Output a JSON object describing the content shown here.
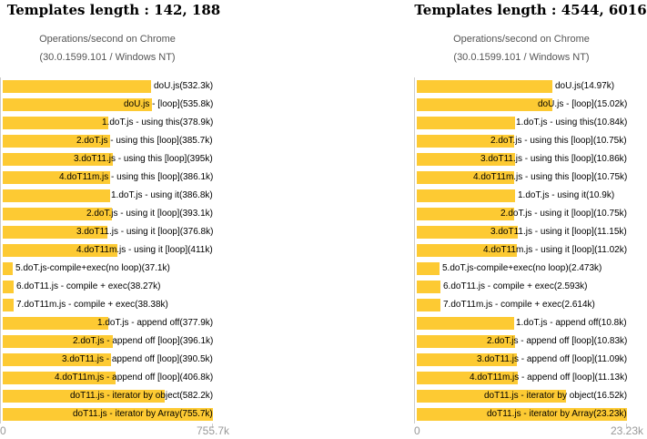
{
  "colors": {
    "bar": "#fdca33",
    "axis": "#cccccc",
    "axis_text": "#999999",
    "subtitle_text": "#555555"
  },
  "chart_data": [
    {
      "type": "bar",
      "orientation": "horizontal",
      "title": "Templates length : 142, 188",
      "subtitle": [
        "Operations/second on Chrome",
        "(30.0.1599.101 / Windows NT)"
      ],
      "ylabel": "",
      "xlabel": "Operations/second",
      "legend": "none",
      "grid": false,
      "xlim": [
        0,
        755700
      ],
      "x_tick_labels": [
        "0",
        "755.7k"
      ],
      "categories": [
        "doU.js",
        "doU.js - [loop]",
        "1.doT.js - using this",
        "2.doT.js - using this [loop]",
        "3.doT11.js - using this [loop]",
        "4.doT11m.js - using this [loop]",
        "1.doT.js - using it",
        "2.doT.js - using it [loop]",
        "3.doT11.js - using it [loop]",
        "4.doT11m.js - using it [loop]",
        "5.doT.js-compile+exec(no loop)",
        "6.doT11.js - compile + exec",
        "7.doT11m.js - compile + exec",
        "1.doT.js - append off",
        "2.doT.js - append off [loop]",
        "3.doT11.js - append off [loop]",
        "4.doT11m.js - append off [loop]",
        "doT11.js - iterator by object",
        "doT11.js - iterator by Array"
      ],
      "values": [
        532300,
        535800,
        378900,
        385700,
        395000,
        386100,
        386800,
        393100,
        376800,
        411000,
        37100,
        38270,
        38380,
        377900,
        396100,
        390500,
        406800,
        582200,
        755700
      ],
      "bar_labels": [
        "doU.js(532.3k)",
        "doU.js - [loop](535.8k)",
        "1.doT.js - using this(378.9k)",
        "2.doT.js - using this [loop](385.7k)",
        "3.doT11.js - using this [loop](395k)",
        "4.doT11m.js - using this [loop](386.1k)",
        "1.doT.js - using it(386.8k)",
        "2.doT.js - using it [loop](393.1k)",
        "3.doT11.js - using it [loop](376.8k)",
        "4.doT11m.js - using it [loop](411k)",
        "5.doT.js-compile+exec(no loop)(37.1k)",
        "6.doT11.js - compile + exec(38.27k)",
        "7.doT11m.js - compile + exec(38.38k)",
        "1.doT.js - append off(377.9k)",
        "2.doT.js - append off [loop](396.1k)",
        "3.doT11.js - append off [loop](390.5k)",
        "4.doT11m.js - append off [loop](406.8k)",
        "doT11.js - iterator by object(582.2k)",
        "doT11.js - iterator by Array(755.7k)"
      ]
    },
    {
      "type": "bar",
      "orientation": "horizontal",
      "title": "Templates length : 4544, 6016",
      "subtitle": [
        "Operations/second on Chrome",
        "(30.0.1599.101 / Windows NT)"
      ],
      "ylabel": "",
      "xlabel": "Operations/second",
      "legend": "none",
      "grid": false,
      "xlim": [
        0,
        23230
      ],
      "x_tick_labels": [
        "0",
        "23.23k"
      ],
      "categories": [
        "doU.js",
        "doU.js - [loop]",
        "1.doT.js - using this",
        "2.doT.js - using this [loop]",
        "3.doT11.js - using this [loop]",
        "4.doT11m.js - using this [loop]",
        "1.doT.js - using it",
        "2.doT.js - using it [loop]",
        "3.doT11.js - using it [loop]",
        "4.doT11m.js - using it [loop]",
        "5.doT.js-compile+exec(no loop)",
        "6.doT11.js - compile + exec",
        "7.doT11m.js - compile + exec",
        "1.doT.js - append off",
        "2.doT.js - append off [loop]",
        "3.doT11.js - append off [loop]",
        "4.doT11m.js - append off [loop]",
        "doT11.js - iterator by object",
        "doT11.js - iterator by Array"
      ],
      "values": [
        14970,
        15020,
        10840,
        10750,
        10860,
        10750,
        10900,
        10750,
        11150,
        11020,
        2473,
        2593,
        2614,
        10800,
        10830,
        11090,
        11130,
        16520,
        23230
      ],
      "bar_labels": [
        "doU.js(14.97k)",
        "doU.js - [loop](15.02k)",
        "1.doT.js - using this(10.84k)",
        "2.doT.js - using this [loop](10.75k)",
        "3.doT11.js - using this [loop](10.86k)",
        "4.doT11m.js - using this [loop](10.75k)",
        "1.doT.js - using it(10.9k)",
        "2.doT.js - using it [loop](10.75k)",
        "3.doT11.js - using it [loop](11.15k)",
        "4.doT11m.js - using it [loop](11.02k)",
        "5.doT.js-compile+exec(no loop)(2.473k)",
        "6.doT11.js - compile + exec(2.593k)",
        "7.doT11m.js - compile + exec(2.614k)",
        "1.doT.js - append off(10.8k)",
        "2.doT.js - append off [loop](10.83k)",
        "3.doT11.js - append off [loop](11.09k)",
        "4.doT11m.js - append off [loop](11.13k)",
        "doT11.js - iterator by object(16.52k)",
        "doT11.js - iterator by Array(23.23k)"
      ]
    }
  ]
}
